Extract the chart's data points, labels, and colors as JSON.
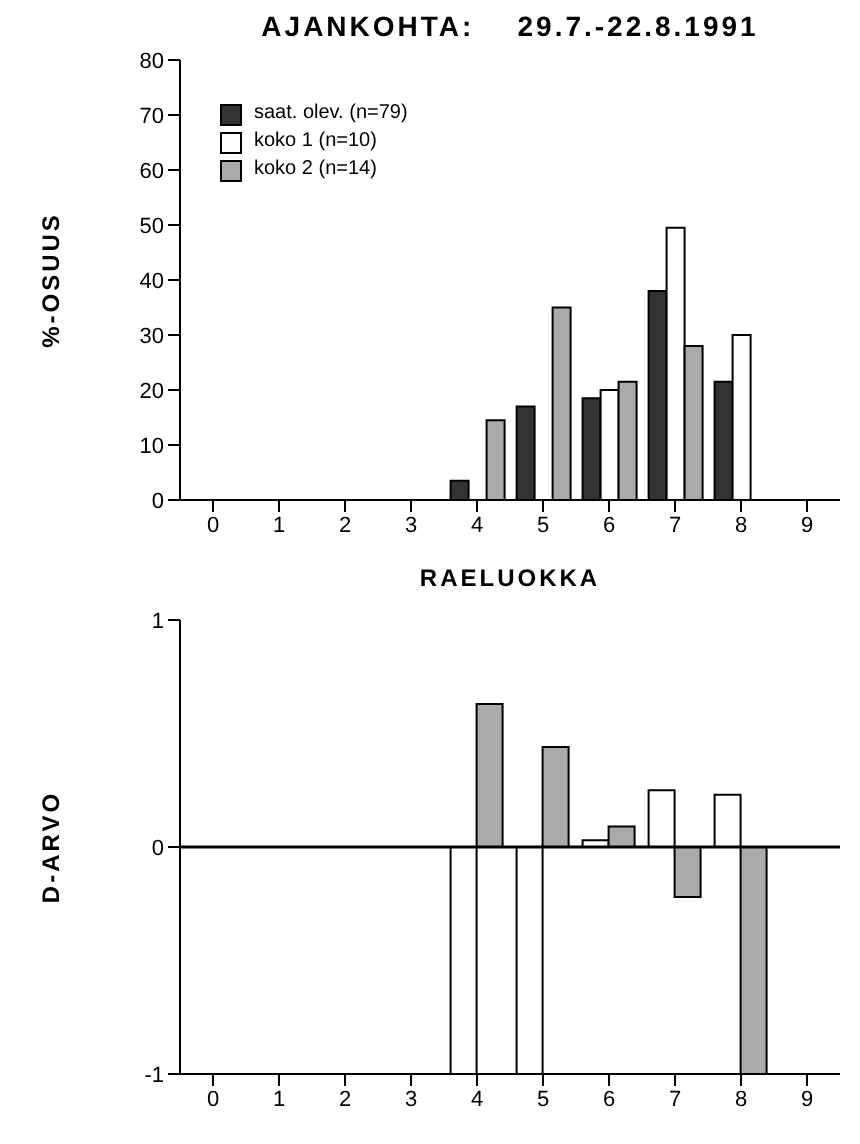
{
  "chart_data": [
    {
      "type": "bar",
      "title": "AJANKOHTA:    29.7.-22.8.1991",
      "xlabel": "RAELUOKKA",
      "ylabel": "%-OSUUS",
      "categories": [
        "0",
        "1",
        "2",
        "3",
        "4",
        "5",
        "6",
        "7",
        "8",
        "9"
      ],
      "series": [
        {
          "name": "saat. olev. (n=79)",
          "color": "#333333",
          "values": [
            null,
            null,
            null,
            null,
            3.5,
            17,
            18.5,
            38,
            21.5,
            null
          ]
        },
        {
          "name": "koko 1 (n=10)",
          "color": "#ffffff",
          "values": [
            null,
            null,
            null,
            null,
            null,
            null,
            20,
            49.5,
            30,
            null
          ]
        },
        {
          "name": "koko 2 (n=14)",
          "color": "#aaaaaa",
          "values": [
            null,
            null,
            null,
            null,
            14.5,
            35,
            21.5,
            28,
            null,
            null
          ]
        }
      ],
      "ylim": [
        0,
        80
      ],
      "yticks": [
        0,
        10,
        20,
        30,
        40,
        50,
        60,
        70,
        80
      ],
      "legend": "top left"
    },
    {
      "type": "bar",
      "ylabel": "D-ARVO",
      "categories": [
        "0",
        "1",
        "2",
        "3",
        "4",
        "5",
        "6",
        "7",
        "8",
        "9"
      ],
      "series": [
        {
          "color": "#ffffff",
          "values": [
            null,
            null,
            null,
            null,
            -1,
            -1,
            0.03,
            0.25,
            0.23,
            null
          ]
        },
        {
          "color": "#aaaaaa",
          "values": [
            null,
            null,
            null,
            null,
            0.63,
            0.44,
            0.09,
            -0.22,
            -1,
            null
          ]
        }
      ],
      "ylim": [
        -1,
        1
      ],
      "yticks": [
        -1,
        0,
        1
      ],
      "ref_lines": [
        {
          "axis": "y",
          "value": 0
        }
      ]
    }
  ]
}
